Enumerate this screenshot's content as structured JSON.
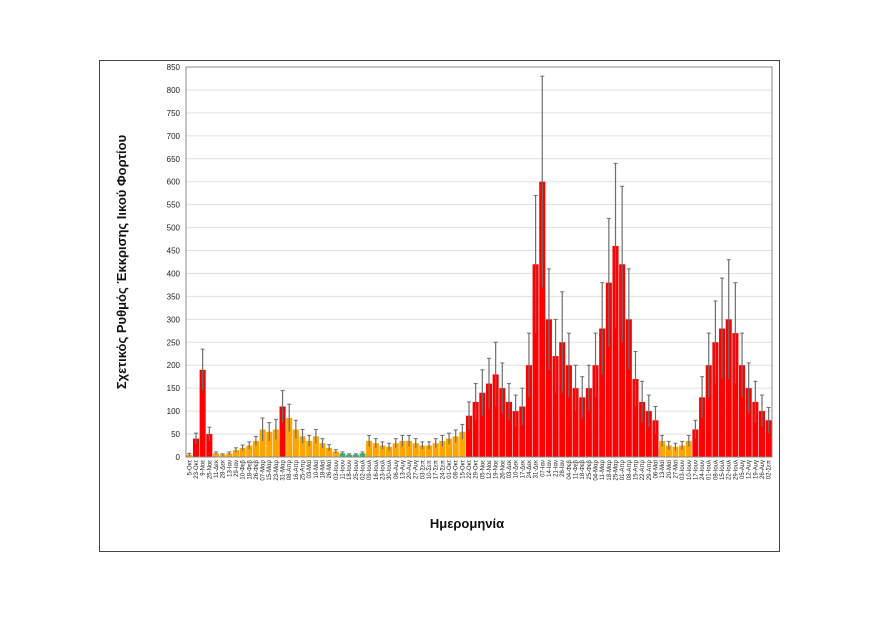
{
  "chart_data": {
    "type": "bar",
    "xlabel": "Ημερομηνία",
    "ylabel": "Σχετικός Ρυθμός Έκκρισης Ιικού Φορτίου",
    "ylim": [
      0,
      850
    ],
    "yticks": [
      0,
      50,
      100,
      150,
      200,
      250,
      300,
      350,
      400,
      450,
      500,
      550,
      600,
      650,
      700,
      750,
      800,
      850
    ],
    "grid": true,
    "legend": "none",
    "colors": {
      "orange": "#FFA500",
      "red": "#FF0000",
      "green": "#2EB872",
      "error": "#6E6E6E"
    },
    "categories": [
      "5-Οκτ",
      "23-Οκτ",
      "9-Νοε",
      "25-Νοε",
      "11-Δεκ",
      "28-Δεκ",
      "13-Ιαν",
      "29-Ιαν",
      "10-Φεβ",
      "18-Φεβ",
      "26-Φεβ",
      "07-Μαρ",
      "15-Μαρ",
      "23-Μαρ",
      "31-Μαρ",
      "08-Απρ",
      "16-Απρ",
      "25-Απρ",
      "03-Μαϊ",
      "10-Μαϊ",
      "18-Μαϊ",
      "26-Μαϊ",
      "03-Ιουν",
      "11-Ιουν",
      "18-Ιουν",
      "25-Ιουν",
      "02-Ιουλ",
      "09-Ιουλ",
      "16-Ιουλ",
      "23-Ιουλ",
      "30-Ιουλ",
      "06-Αυγ",
      "13-Αυγ",
      "20-Αυγ",
      "27-Αυγ",
      "03-Σεπ",
      "10-Σεπ",
      "17-Σεπ",
      "24-Σεπ",
      "01-Οκτ",
      "08-Οκτ",
      "15-Οκτ",
      "22-Οκτ",
      "29-Οκτ",
      "05-Νοε",
      "12-Νοε",
      "19-Νοε",
      "26-Νοε",
      "03-Δεκ",
      "10-Δεκ",
      "17-Δεκ",
      "24-Δεκ",
      "31-Δεκ",
      "07-Ιαν",
      "14-Ιαν",
      "21-Ιαν",
      "28-Ιαν",
      "04-Φεβ",
      "11-Φεβ",
      "18-Φεβ",
      "25-Φεβ",
      "04-Μαρ",
      "11-Μαρ",
      "18-Μαρ",
      "25-Μαρ",
      "01-Απρ",
      "08-Απρ",
      "15-Απρ",
      "22-Απρ",
      "29-Απρ",
      "06-Μαϊ",
      "13-Μαϊ",
      "20-Μαϊ",
      "27-Μαϊ",
      "03-Ιουν",
      "10-Ιουν",
      "17-Ιουν",
      "24-Ιουν",
      "01-Ιουλ",
      "08-Ιουλ",
      "15-Ιουλ",
      "22-Ιουλ",
      "29-Ιουλ",
      "05-Αυγ",
      "12-Αυγ",
      "19-Αυγ",
      "26-Αυγ",
      "02-Σεπ"
    ],
    "values": [
      5,
      40,
      190,
      50,
      8,
      5,
      8,
      15,
      20,
      25,
      35,
      60,
      55,
      60,
      110,
      85,
      60,
      45,
      35,
      45,
      30,
      20,
      12,
      8,
      5,
      5,
      8,
      35,
      30,
      25,
      22,
      30,
      35,
      35,
      30,
      25,
      25,
      30,
      35,
      40,
      45,
      55,
      90,
      120,
      140,
      160,
      180,
      150,
      120,
      100,
      110,
      200,
      420,
      600,
      300,
      220,
      250,
      200,
      150,
      130,
      150,
      200,
      280,
      380,
      460,
      420,
      300,
      170,
      120,
      100,
      80,
      35,
      25,
      22,
      25,
      35,
      60,
      130,
      200,
      250,
      280,
      300,
      270,
      200,
      150,
      120,
      100,
      80
    ],
    "errors": [
      3,
      12,
      45,
      15,
      3,
      2,
      3,
      5,
      6,
      8,
      10,
      25,
      20,
      22,
      35,
      30,
      20,
      15,
      12,
      15,
      10,
      7,
      4,
      3,
      2,
      2,
      3,
      12,
      10,
      8,
      8,
      10,
      12,
      12,
      10,
      8,
      8,
      10,
      12,
      12,
      14,
      16,
      30,
      40,
      50,
      55,
      70,
      55,
      40,
      35,
      40,
      70,
      150,
      230,
      110,
      80,
      110,
      70,
      50,
      45,
      50,
      70,
      100,
      140,
      180,
      170,
      110,
      60,
      45,
      35,
      30,
      12,
      9,
      8,
      9,
      12,
      20,
      45,
      70,
      90,
      110,
      130,
      110,
      70,
      55,
      45,
      35,
      28
    ],
    "levels": [
      "orange",
      "red",
      "red",
      "red",
      "orange",
      "orange",
      "orange",
      "orange",
      "orange",
      "orange",
      "orange",
      "orange",
      "orange",
      "orange",
      "red",
      "orange",
      "orange",
      "orange",
      "orange",
      "orange",
      "orange",
      "orange",
      "orange",
      "green",
      "green",
      "green",
      "green",
      "orange",
      "orange",
      "orange",
      "orange",
      "orange",
      "orange",
      "orange",
      "orange",
      "orange",
      "orange",
      "orange",
      "orange",
      "orange",
      "orange",
      "orange",
      "red",
      "red",
      "red",
      "red",
      "red",
      "red",
      "red",
      "red",
      "red",
      "red",
      "red",
      "red",
      "red",
      "red",
      "red",
      "red",
      "red",
      "red",
      "red",
      "red",
      "red",
      "red",
      "red",
      "red",
      "red",
      "red",
      "red",
      "red",
      "red",
      "orange",
      "orange",
      "orange",
      "orange",
      "orange",
      "red",
      "red",
      "red",
      "red",
      "red",
      "red",
      "red",
      "red",
      "red",
      "red",
      "red",
      "red"
    ]
  }
}
